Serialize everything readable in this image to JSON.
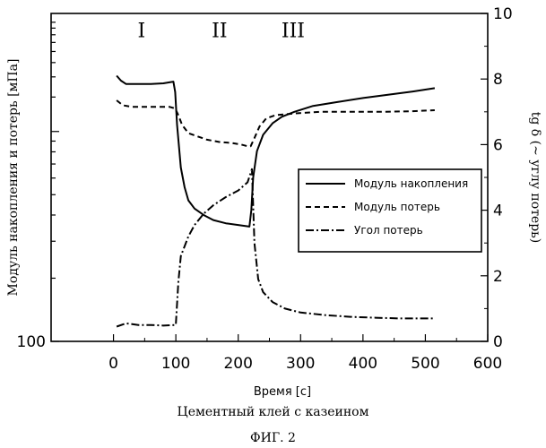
{
  "caption": "Цементный клей с казеином",
  "figure_label": "ФИГ. 2",
  "chart_data": {
    "type": "line",
    "title": "",
    "xlabel": "Время [с]",
    "ylabel_left": "Модуль накопления и потерь [мПа]",
    "ylabel_right": "tg δ (~ углу потерь)",
    "xlim": [
      -100,
      600
    ],
    "xticks": [
      0,
      100,
      200,
      300,
      400,
      500,
      600
    ],
    "ylim_right": [
      0,
      10
    ],
    "yticks_right": [
      0,
      2,
      4,
      6,
      8,
      10
    ],
    "yscale_left": "log",
    "ylim_left_min_label": "100",
    "legend": {
      "placement": "middle-right"
    },
    "regions": [
      {
        "label": "I",
        "x": 45,
        "y": 8.9
      },
      {
        "label": "II",
        "x": 170,
        "y": 8.9
      },
      {
        "label": "III",
        "x": 288,
        "y": 8.9
      }
    ],
    "series": [
      {
        "name": "Модуль накопления",
        "style": "solid",
        "x": [
          5,
          12,
          20,
          40,
          60,
          80,
          96,
          99,
          102,
          108,
          114,
          120,
          130,
          145,
          160,
          180,
          200,
          218,
          221,
          224,
          230,
          240,
          255,
          270,
          290,
          320,
          360,
          400,
          440,
          480,
          515
        ],
        "y": [
          8.1,
          7.95,
          7.85,
          7.85,
          7.85,
          7.87,
          7.92,
          7.6,
          6.6,
          5.3,
          4.7,
          4.3,
          4.05,
          3.85,
          3.7,
          3.6,
          3.55,
          3.5,
          4.0,
          5.0,
          5.8,
          6.3,
          6.65,
          6.85,
          7.0,
          7.18,
          7.3,
          7.42,
          7.52,
          7.62,
          7.72
        ]
      },
      {
        "name": "Модуль потерь",
        "style": "dashed",
        "x": [
          5,
          15,
          30,
          60,
          90,
          99,
          104,
          110,
          120,
          135,
          150,
          170,
          190,
          205,
          215,
          220,
          226,
          234,
          245,
          260,
          290,
          330,
          380,
          430,
          480,
          515
        ],
        "y": [
          7.35,
          7.2,
          7.15,
          7.15,
          7.15,
          7.1,
          6.9,
          6.6,
          6.35,
          6.25,
          6.15,
          6.08,
          6.05,
          6.0,
          5.95,
          5.95,
          6.2,
          6.55,
          6.8,
          6.9,
          6.95,
          7.0,
          7.0,
          7.0,
          7.02,
          7.05
        ]
      },
      {
        "name": "Угол потерь",
        "style": "dashdot",
        "x": [
          5,
          20,
          40,
          60,
          80,
          100,
          104,
          108,
          114,
          120,
          130,
          145,
          160,
          180,
          200,
          215,
          222,
          226,
          232,
          240,
          255,
          275,
          300,
          340,
          380,
          420,
          460,
          515
        ],
        "y": [
          0.45,
          0.55,
          0.5,
          0.5,
          0.48,
          0.5,
          1.8,
          2.6,
          2.9,
          3.2,
          3.55,
          3.9,
          4.15,
          4.4,
          4.6,
          4.85,
          5.25,
          3.0,
          1.9,
          1.5,
          1.2,
          1.0,
          0.88,
          0.8,
          0.75,
          0.72,
          0.7,
          0.7
        ]
      }
    ]
  }
}
